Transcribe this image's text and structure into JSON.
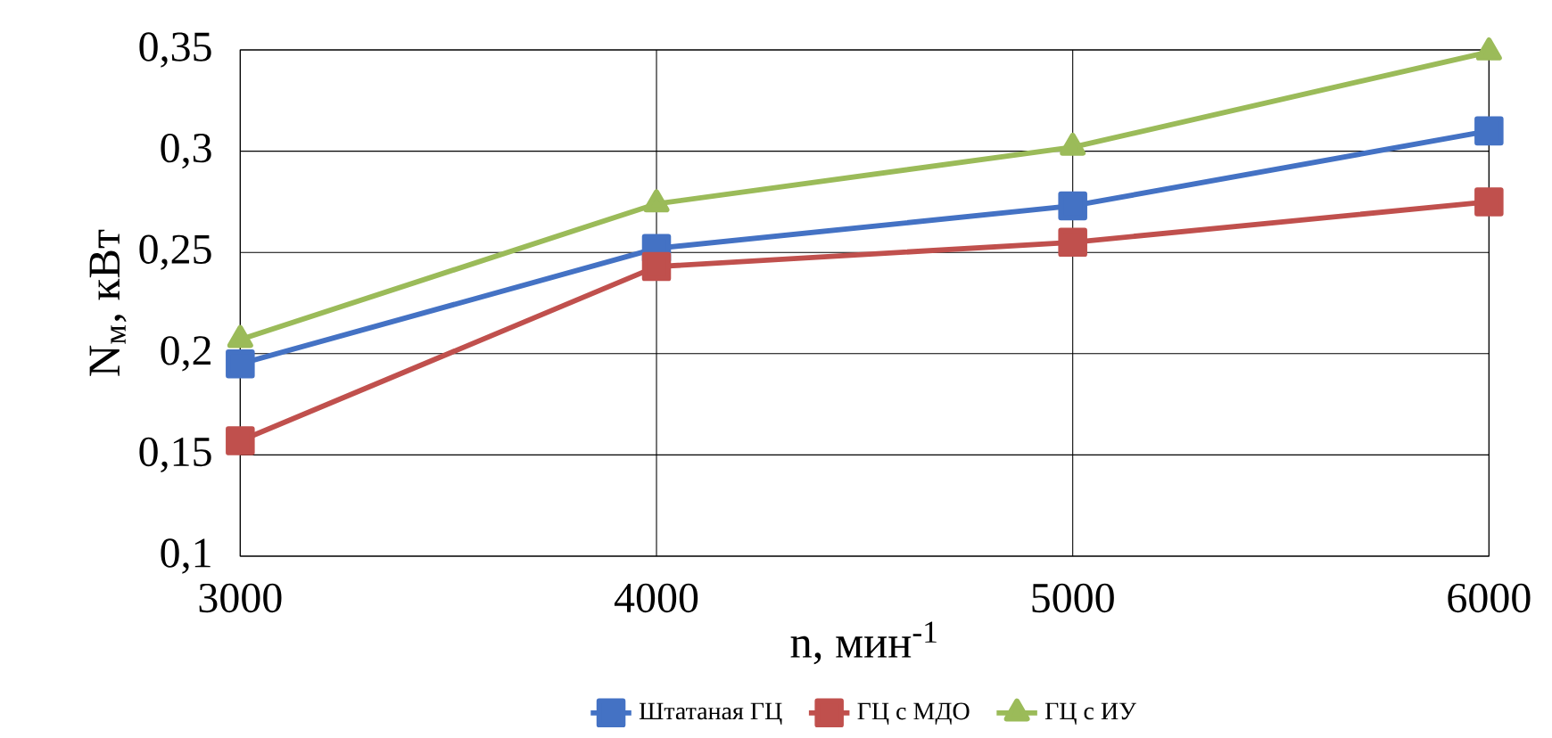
{
  "chart_data": {
    "type": "line",
    "xlabel": "n, мин$^{-1}$",
    "ylabel": "N$_{м}$, кВт",
    "x": [
      3000,
      4000,
      5000,
      6000
    ],
    "series": [
      {
        "name": "Штатаная ГЦ",
        "color": "#4472c4",
        "marker": "square",
        "values": [
          0.195,
          0.252,
          0.273,
          0.31
        ]
      },
      {
        "name": "ГЦ с МДО",
        "color": "#c0504d",
        "marker": "square",
        "values": [
          0.157,
          0.243,
          0.255,
          0.275
        ]
      },
      {
        "name": "ГЦ с ИУ",
        "color": "#9bbb59",
        "marker": "triangle",
        "values": [
          0.207,
          0.274,
          0.302,
          0.349
        ]
      }
    ],
    "xlim": [
      3000,
      6000
    ],
    "xticks": [
      3000,
      4000,
      5000,
      6000
    ],
    "ylim": [
      0.1,
      0.35
    ],
    "yticks": [
      {
        "value": 0.1,
        "label": "0,1"
      },
      {
        "value": 0.15,
        "label": "0,15"
      },
      {
        "value": 0.2,
        "label": "0,2"
      },
      {
        "value": 0.25,
        "label": "0,25"
      },
      {
        "value": 0.3,
        "label": "0,3"
      },
      {
        "value": 0.35,
        "label": "0,35"
      }
    ],
    "grid": true,
    "legend": "bottom",
    "line_style": "solid"
  }
}
